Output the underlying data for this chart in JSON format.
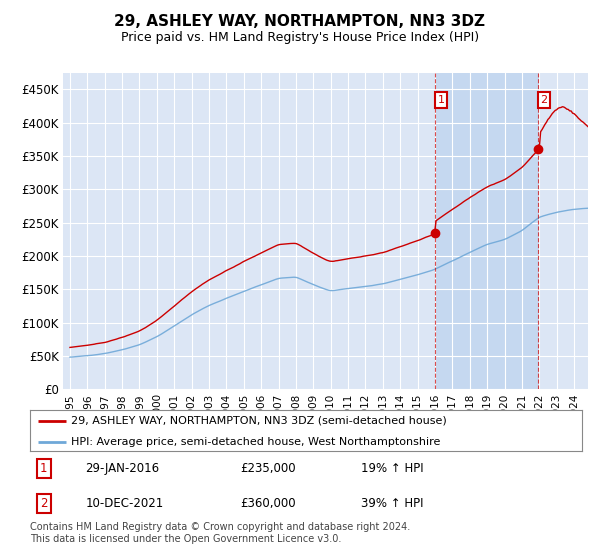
{
  "title": "29, ASHLEY WAY, NORTHAMPTON, NN3 3DZ",
  "subtitle": "Price paid vs. HM Land Registry's House Price Index (HPI)",
  "ylim": [
    0,
    475000
  ],
  "yticks": [
    0,
    50000,
    100000,
    150000,
    200000,
    250000,
    300000,
    350000,
    400000,
    450000
  ],
  "ytick_labels": [
    "£0",
    "£50K",
    "£100K",
    "£150K",
    "£200K",
    "£250K",
    "£300K",
    "£350K",
    "£400K",
    "£450K"
  ],
  "background_color": "#ffffff",
  "plot_bg_color": "#dce6f5",
  "grid_color": "#ffffff",
  "hpi_color": "#6fa8d8",
  "price_color": "#cc0000",
  "shade_color": "#c5d8f0",
  "marker1_price": 235000,
  "marker2_price": 360000,
  "legend_price_label": "29, ASHLEY WAY, NORTHAMPTON, NN3 3DZ (semi-detached house)",
  "legend_hpi_label": "HPI: Average price, semi-detached house, West Northamptonshire",
  "footer": "Contains HM Land Registry data © Crown copyright and database right 2024.\nThis data is licensed under the Open Government Licence v3.0.",
  "xtick_years": [
    "1995",
    "1996",
    "1997",
    "1998",
    "1999",
    "2000",
    "2001",
    "2002",
    "2003",
    "2004",
    "2005",
    "2006",
    "2007",
    "2008",
    "2009",
    "2010",
    "2011",
    "2012",
    "2013",
    "2014",
    "2015",
    "2016",
    "2017",
    "2018",
    "2019",
    "2020",
    "2021",
    "2022",
    "2023",
    "2024"
  ]
}
